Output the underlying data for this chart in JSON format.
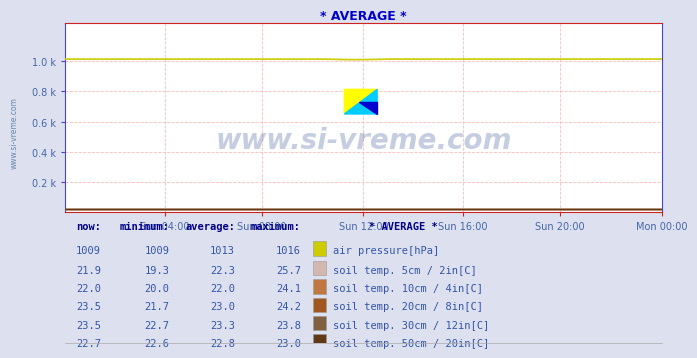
{
  "title": "* AVERAGE *",
  "title_color": "#0000cc",
  "background_color": "#dde0ee",
  "plot_background": "#ffffff",
  "grid_color": "#ffbbbb",
  "grid_style": "--",
  "watermark_text": "www.si-vreme.com",
  "watermark_color": "#1a3a8a",
  "watermark_alpha": 0.25,
  "ylim": [
    0,
    1250
  ],
  "ytick_vals": [
    200,
    400,
    600,
    800,
    1000
  ],
  "ytick_labels": [
    "0.2 k",
    "0.4 k",
    "0.6 k",
    "0.8 k",
    "1.0 k"
  ],
  "x_tick_labels": [
    "Sun 04:00",
    "Sun 08:00",
    "Sun 12:00",
    "Sun 16:00",
    "Sun 20:00",
    "Mon 00:00"
  ],
  "x_tick_fracs": [
    0.1667,
    0.3333,
    0.5,
    0.6667,
    0.8333,
    1.0
  ],
  "air_pressure_value": 1013,
  "air_pressure_color": "#cccc00",
  "soil5_color": "#d4b8b0",
  "soil10_color": "#c07840",
  "soil20_color": "#a05820",
  "soil30_color": "#806040",
  "soil50_color": "#603818",
  "spine_color_lr": "#4444cc",
  "spine_color_tb": "#cc2222",
  "axis_label_color": "#4466aa",
  "left_label": "www.si-vreme.com",
  "left_label_color": "#6688aa",
  "table_header_color": "#000088",
  "table_data_color": "#3355aa",
  "table_rows": [
    {
      "now": "1009",
      "min": "1009",
      "avg": "1013",
      "max": "1016",
      "label": "air pressure[hPa]",
      "swatch": "#cccc00"
    },
    {
      "now": "21.9",
      "min": "19.3",
      "avg": "22.3",
      "max": "25.7",
      "label": "soil temp. 5cm / 2in[C]",
      "swatch": "#d4b8b0"
    },
    {
      "now": "22.0",
      "min": "20.0",
      "avg": "22.0",
      "max": "24.1",
      "label": "soil temp. 10cm / 4in[C]",
      "swatch": "#c07840"
    },
    {
      "now": "23.5",
      "min": "21.7",
      "avg": "23.0",
      "max": "24.2",
      "label": "soil temp. 20cm / 8in[C]",
      "swatch": "#a05820"
    },
    {
      "now": "23.5",
      "min": "22.7",
      "avg": "23.3",
      "max": "23.8",
      "label": "soil temp. 30cm / 12in[C]",
      "swatch": "#806040"
    },
    {
      "now": "22.7",
      "min": "22.6",
      "avg": "22.8",
      "max": "23.0",
      "label": "soil temp. 50cm / 20in[C]",
      "swatch": "#603818"
    }
  ],
  "logo_yellow": "#ffff00",
  "logo_cyan": "#00ccff",
  "logo_blue": "#0000cc"
}
